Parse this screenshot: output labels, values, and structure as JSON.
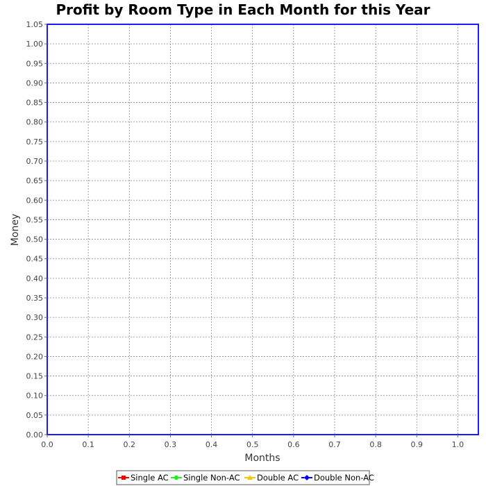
{
  "chart_data": {
    "type": "line",
    "title": "Profit by Room Type in Each Month for this Year",
    "xlabel": "Months",
    "ylabel": "Money",
    "xlim": [
      0.0,
      1.05
    ],
    "ylim": [
      0.0,
      1.05
    ],
    "x_ticks": [
      "0.0",
      "0.1",
      "0.2",
      "0.3",
      "0.4",
      "0.5",
      "0.6",
      "0.7",
      "0.8",
      "0.9",
      "1.0"
    ],
    "y_ticks": [
      "0.00",
      "0.05",
      "0.10",
      "0.15",
      "0.20",
      "0.25",
      "0.30",
      "0.35",
      "0.40",
      "0.45",
      "0.50",
      "0.55",
      "0.60",
      "0.65",
      "0.70",
      "0.75",
      "0.80",
      "0.85",
      "0.90",
      "0.95",
      "1.00",
      "1.05"
    ],
    "grid": true,
    "legend_position": "bottom",
    "series": [
      {
        "name": "Single AC",
        "color": "#ff0000",
        "values": []
      },
      {
        "name": "Single Non-AC",
        "color": "#22ee22",
        "values": []
      },
      {
        "name": "Double AC",
        "color": "#f5c800",
        "values": []
      },
      {
        "name": "Double Non-AC",
        "color": "#0000ff",
        "values": []
      }
    ]
  }
}
